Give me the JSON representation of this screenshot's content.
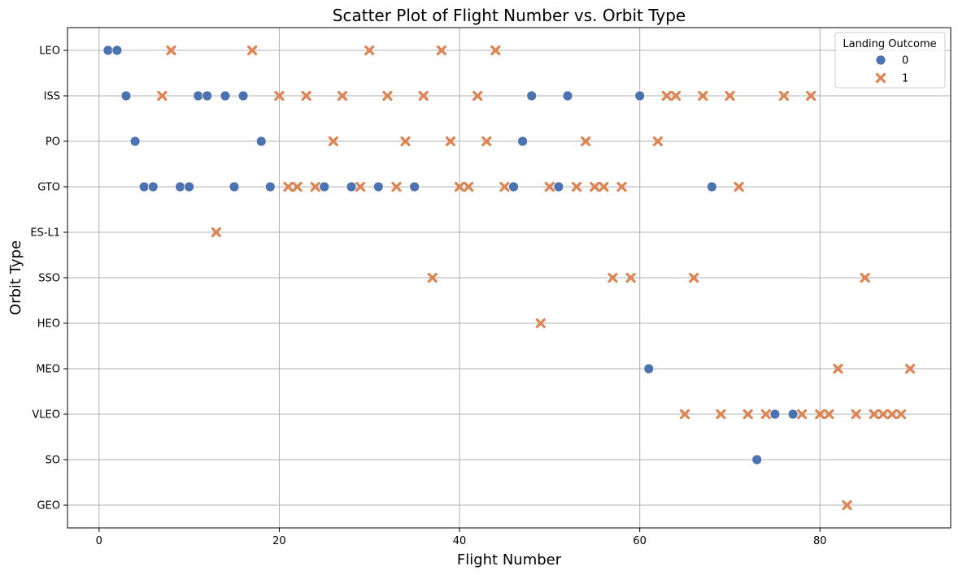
{
  "chart_data": {
    "type": "scatter",
    "title": "Scatter Plot of Flight Number vs. Orbit Type",
    "xlabel": "Flight Number",
    "ylabel": "Orbit Type",
    "xlim": [
      -3.5,
      94.5
    ],
    "xticks": [
      0,
      20,
      40,
      60,
      80
    ],
    "y_categories": [
      "LEO",
      "ISS",
      "PO",
      "GTO",
      "ES-L1",
      "SSO",
      "HEO",
      "MEO",
      "VLEO",
      "SO",
      "GEO"
    ],
    "grid": true,
    "legend": {
      "title": "Landing Outcome",
      "placement": "top-right"
    },
    "series": [
      {
        "name": "0",
        "marker": "circle",
        "color": "#4c72b0",
        "points": [
          [
            1,
            "LEO"
          ],
          [
            2,
            "LEO"
          ],
          [
            3,
            "ISS"
          ],
          [
            11,
            "ISS"
          ],
          [
            12,
            "ISS"
          ],
          [
            14,
            "ISS"
          ],
          [
            16,
            "ISS"
          ],
          [
            48,
            "ISS"
          ],
          [
            52,
            "ISS"
          ],
          [
            60,
            "ISS"
          ],
          [
            4,
            "PO"
          ],
          [
            18,
            "PO"
          ],
          [
            47,
            "PO"
          ],
          [
            5,
            "GTO"
          ],
          [
            6,
            "GTO"
          ],
          [
            9,
            "GTO"
          ],
          [
            10,
            "GTO"
          ],
          [
            15,
            "GTO"
          ],
          [
            19,
            "GTO"
          ],
          [
            25,
            "GTO"
          ],
          [
            28,
            "GTO"
          ],
          [
            31,
            "GTO"
          ],
          [
            35,
            "GTO"
          ],
          [
            46,
            "GTO"
          ],
          [
            51,
            "GTO"
          ],
          [
            68,
            "GTO"
          ],
          [
            61,
            "MEO"
          ],
          [
            75,
            "VLEO"
          ],
          [
            77,
            "VLEO"
          ],
          [
            73,
            "SO"
          ]
        ]
      },
      {
        "name": "1",
        "marker": "x",
        "color": "#dd8452",
        "points": [
          [
            8,
            "LEO"
          ],
          [
            17,
            "LEO"
          ],
          [
            30,
            "LEO"
          ],
          [
            38,
            "LEO"
          ],
          [
            44,
            "LEO"
          ],
          [
            7,
            "ISS"
          ],
          [
            20,
            "ISS"
          ],
          [
            23,
            "ISS"
          ],
          [
            27,
            "ISS"
          ],
          [
            32,
            "ISS"
          ],
          [
            36,
            "ISS"
          ],
          [
            42,
            "ISS"
          ],
          [
            63,
            "ISS"
          ],
          [
            64,
            "ISS"
          ],
          [
            67,
            "ISS"
          ],
          [
            70,
            "ISS"
          ],
          [
            76,
            "ISS"
          ],
          [
            79,
            "ISS"
          ],
          [
            26,
            "PO"
          ],
          [
            34,
            "PO"
          ],
          [
            39,
            "PO"
          ],
          [
            43,
            "PO"
          ],
          [
            54,
            "PO"
          ],
          [
            62,
            "PO"
          ],
          [
            21,
            "GTO"
          ],
          [
            22,
            "GTO"
          ],
          [
            24,
            "GTO"
          ],
          [
            29,
            "GTO"
          ],
          [
            33,
            "GTO"
          ],
          [
            40,
            "GTO"
          ],
          [
            41,
            "GTO"
          ],
          [
            45,
            "GTO"
          ],
          [
            50,
            "GTO"
          ],
          [
            53,
            "GTO"
          ],
          [
            55,
            "GTO"
          ],
          [
            56,
            "GTO"
          ],
          [
            58,
            "GTO"
          ],
          [
            71,
            "GTO"
          ],
          [
            13,
            "ES-L1"
          ],
          [
            37,
            "SSO"
          ],
          [
            57,
            "SSO"
          ],
          [
            59,
            "SSO"
          ],
          [
            66,
            "SSO"
          ],
          [
            85,
            "SSO"
          ],
          [
            49,
            "HEO"
          ],
          [
            82,
            "MEO"
          ],
          [
            90,
            "MEO"
          ],
          [
            65,
            "VLEO"
          ],
          [
            69,
            "VLEO"
          ],
          [
            72,
            "VLEO"
          ],
          [
            74,
            "VLEO"
          ],
          [
            78,
            "VLEO"
          ],
          [
            80,
            "VLEO"
          ],
          [
            81,
            "VLEO"
          ],
          [
            84,
            "VLEO"
          ],
          [
            86,
            "VLEO"
          ],
          [
            87,
            "VLEO"
          ],
          [
            88,
            "VLEO"
          ],
          [
            89,
            "VLEO"
          ],
          [
            83,
            "GEO"
          ]
        ]
      }
    ]
  }
}
